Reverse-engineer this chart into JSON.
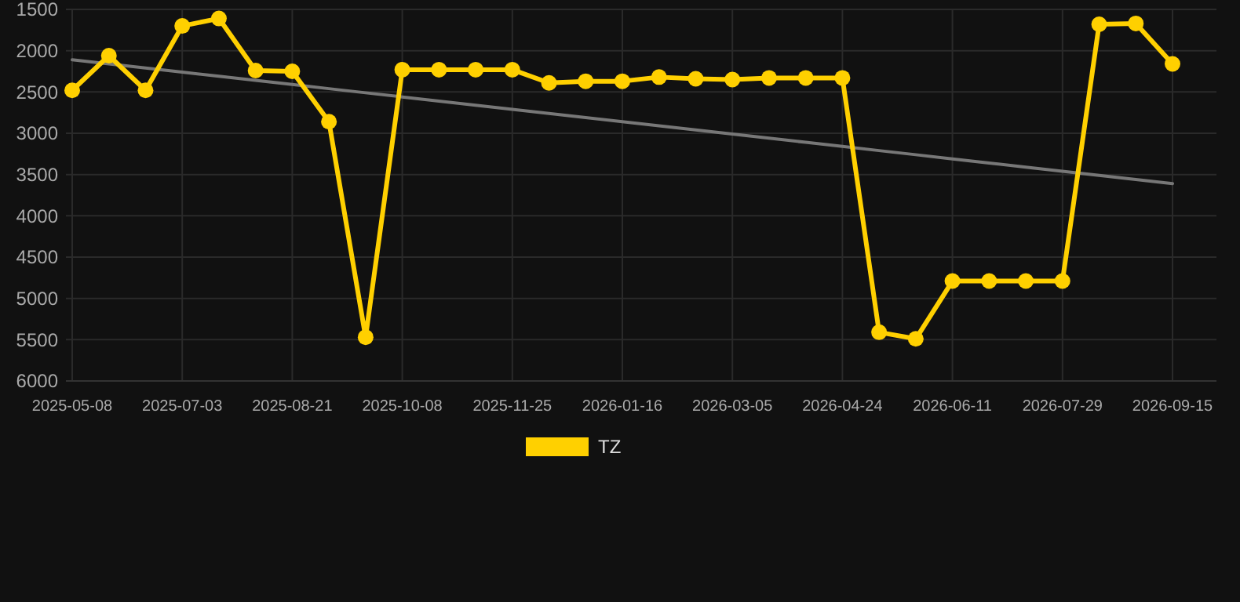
{
  "chart_data": {
    "type": "line",
    "categories": [
      "2025-05-08",
      null,
      null,
      "2025-07-03",
      null,
      null,
      "2025-08-21",
      null,
      null,
      "2025-10-08",
      null,
      null,
      "2025-11-25",
      null,
      null,
      "2026-01-16",
      null,
      null,
      "2026-03-05",
      null,
      null,
      "2026-04-24",
      null,
      null,
      "2026-06-11",
      null,
      null,
      "2026-07-29",
      null,
      null,
      "2026-09-15"
    ],
    "series": [
      {
        "name": "TZ",
        "color": "#ffd000",
        "values": [
          2480,
          2060,
          2480,
          1700,
          1610,
          2240,
          2250,
          2860,
          5470,
          2230,
          2230,
          2230,
          2230,
          2390,
          2370,
          2370,
          2320,
          2340,
          2350,
          2330,
          2330,
          2330,
          5410,
          5490,
          4790,
          4790,
          4790,
          4790,
          1680,
          1670,
          2160
        ]
      },
      {
        "type": "line",
        "color": "#777777",
        "marker": "none",
        "values": [
          2110,
          2160,
          2210,
          2260,
          2310,
          2360,
          2410,
          2460,
          2510,
          2560,
          2610,
          2660,
          2710,
          2760,
          2810,
          2860,
          2910,
          2960,
          3010,
          3060,
          3110,
          3160,
          3210,
          3260,
          3310,
          3360,
          3410,
          3460,
          3510,
          3560,
          3610
        ]
      }
    ],
    "ylim": [
      6000,
      1500
    ],
    "yticks": [
      1500,
      2000,
      2500,
      3000,
      3500,
      4000,
      4500,
      5000,
      5500,
      6000
    ],
    "grid": true,
    "legend": "bottom",
    "marker": "circle",
    "line_style": "solid"
  }
}
